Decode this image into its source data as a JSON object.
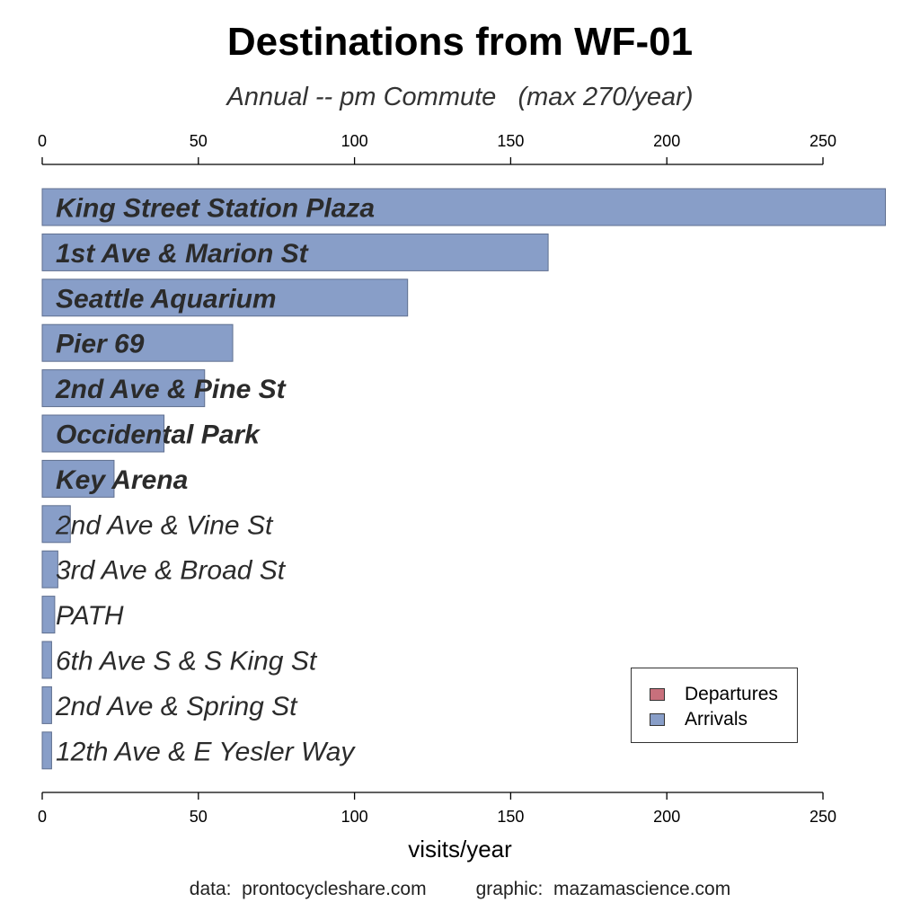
{
  "chart_data": {
    "type": "bar",
    "orientation": "horizontal",
    "title": "Destinations from WF-01",
    "subtitle": "Annual -- pm Commute   (max 270/year)",
    "xlabel": "visits/year",
    "xlim": [
      0,
      270
    ],
    "x_ticks": [
      0,
      50,
      100,
      150,
      200,
      250
    ],
    "axis_position": "top-and-bottom",
    "grid": false,
    "legend_position": "bottom-right",
    "legend": [
      {
        "name": "Departures",
        "color": "#c8707c"
      },
      {
        "name": "Arrivals",
        "color": "#889ec8"
      }
    ],
    "bar_color": "#889ec8",
    "bar_edge_color": "#5f6f8f",
    "label_color": "#2b2b2b",
    "categories": [
      "King Street Station Plaza",
      "1st Ave & Marion St",
      "Seattle Aquarium",
      "Pier 69",
      "2nd Ave & Pine St",
      "Occidental Park",
      "Key Arena",
      "2nd Ave & Vine St",
      "3rd Ave & Broad St",
      "PATH",
      "6th Ave S & S King St",
      "2nd Ave & Spring St",
      "12th Ave & E Yesler Way"
    ],
    "values": [
      270,
      162,
      117,
      61,
      52,
      39,
      23,
      9,
      5,
      4,
      3,
      3,
      3
    ],
    "bold_labels": [
      true,
      true,
      true,
      true,
      true,
      true,
      true,
      false,
      false,
      false,
      false,
      false,
      false
    ]
  },
  "credits": {
    "data": "data:  prontocycleshare.com",
    "graphic": "graphic:  mazamascience.com"
  }
}
